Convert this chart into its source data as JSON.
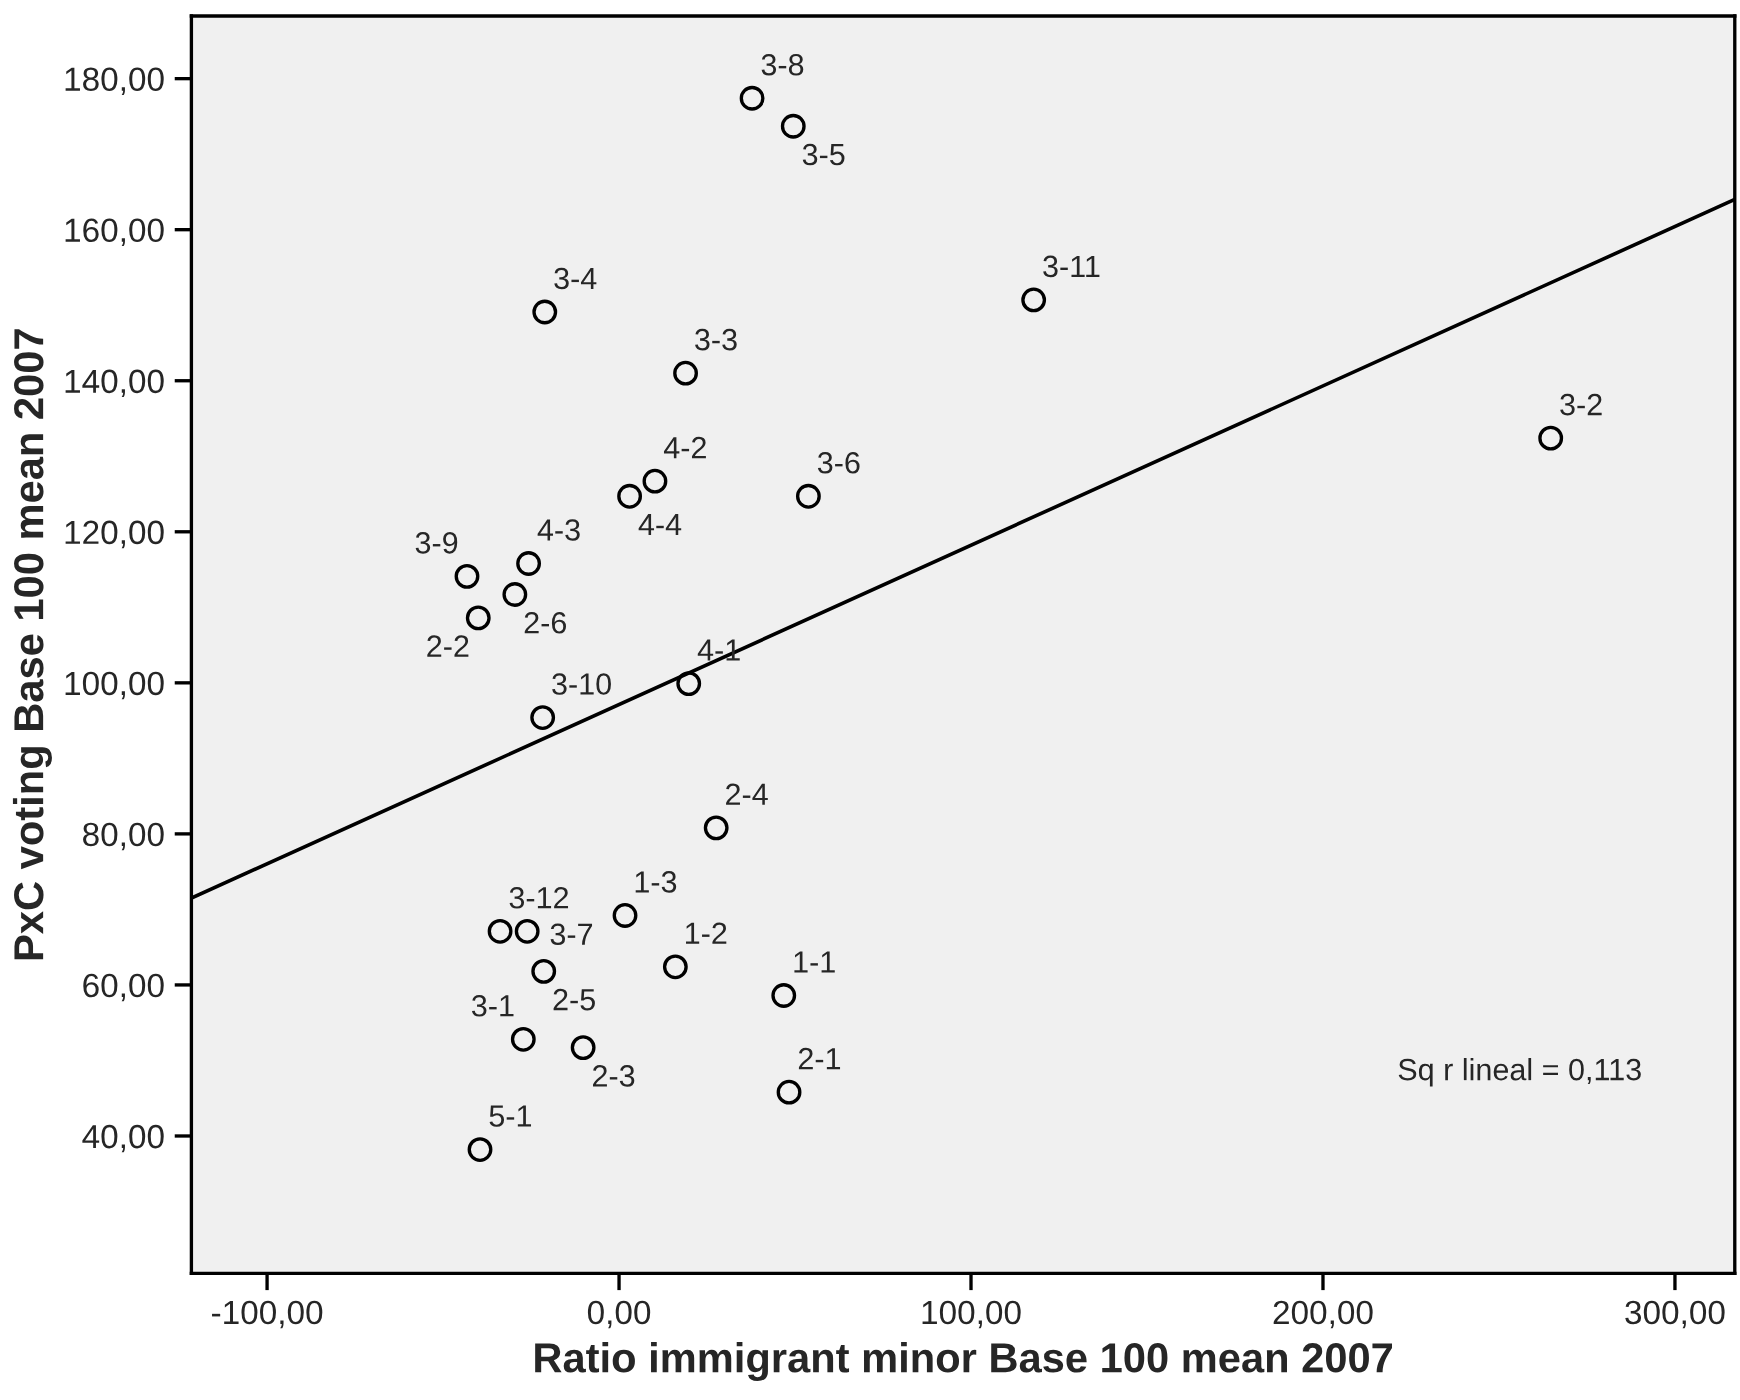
{
  "chart_data": {
    "type": "scatter",
    "xlabel": "Ratio immigrant minor Base 100 mean 2007",
    "ylabel": "PxC voting Base 100 mean 2007",
    "series": [
      {
        "color": "#000000",
        "marker": "circle",
        "x": [
          37.8,
          49.5,
          -21.1,
          18.9,
          3.0,
          10.2,
          53.8,
          -43.2,
          -25.7,
          -29.6,
          -40.0,
          19.8,
          -21.7,
          27.6,
          -33.8,
          -26.1,
          1.7,
          -21.4,
          16.0,
          46.8,
          -27.2,
          -10.2,
          48.3,
          -39.5,
          117.8,
          264.7
        ],
        "values": [
          177.4,
          173.7,
          149.1,
          141.0,
          124.7,
          126.7,
          124.7,
          114.1,
          115.8,
          111.7,
          108.6,
          99.9,
          95.4,
          80.8,
          67.1,
          67.1,
          69.2,
          61.8,
          62.4,
          58.6,
          52.8,
          51.7,
          45.8,
          38.2,
          150.7,
          132.4
        ]
      },
      {
        "type": "line",
        "color": "#000000",
        "line_style": "solid",
        "x": [
          -121.5,
          317
        ],
        "values": [
          71.5,
          164
        ]
      }
    ],
    "annotations": [
      {
        "text": "3-8",
        "x": 37.8,
        "y": 177.4
      },
      {
        "text": "3-5",
        "x": 49.5,
        "y": 173.7
      },
      {
        "text": "3-4",
        "x": -21.1,
        "y": 149.1
      },
      {
        "text": "3-3",
        "x": 18.9,
        "y": 141.0
      },
      {
        "text": "4-4",
        "x": 3.0,
        "y": 124.7
      },
      {
        "text": "4-2",
        "x": 10.2,
        "y": 126.7
      },
      {
        "text": "3-6",
        "x": 53.8,
        "y": 124.7
      },
      {
        "text": "3-9",
        "x": -43.2,
        "y": 114.1
      },
      {
        "text": "4-3",
        "x": -25.7,
        "y": 115.8
      },
      {
        "text": "2-6",
        "x": -29.6,
        "y": 111.7
      },
      {
        "text": "2-2",
        "x": -40.0,
        "y": 108.6
      },
      {
        "text": "4-1",
        "x": 19.8,
        "y": 99.9
      },
      {
        "text": "3-10",
        "x": -21.7,
        "y": 95.4
      },
      {
        "text": "2-4",
        "x": 27.6,
        "y": 80.8
      },
      {
        "text": "3-12",
        "x": -33.8,
        "y": 67.1
      },
      {
        "text": "3-7",
        "x": -26.1,
        "y": 67.1
      },
      {
        "text": "1-3",
        "x": 1.7,
        "y": 69.2
      },
      {
        "text": "2-5",
        "x": -21.4,
        "y": 61.8
      },
      {
        "text": "1-2",
        "x": 16.0,
        "y": 62.4
      },
      {
        "text": "1-1",
        "x": 46.8,
        "y": 58.6
      },
      {
        "text": "3-1",
        "x": -27.2,
        "y": 52.8
      },
      {
        "text": "2-3",
        "x": -10.2,
        "y": 51.7
      },
      {
        "text": "2-1",
        "x": 48.3,
        "y": 45.8
      },
      {
        "text": "5-1",
        "x": -39.5,
        "y": 38.2
      },
      {
        "text": "3-11",
        "x": 117.8,
        "y": 150.7
      },
      {
        "text": "3-2",
        "x": 264.7,
        "y": 132.4
      },
      "Sq r lineal = 0,113"
    ],
    "xlim": [
      -121.5,
      317
    ],
    "ylim": [
      21.8,
      188.3
    ],
    "xticks": [
      {
        "value": -100,
        "label": "-100,00"
      },
      {
        "value": 0,
        "label": "0,00"
      },
      {
        "value": 100,
        "label": "100,00"
      },
      {
        "value": 200,
        "label": "200,00"
      },
      {
        "value": 300,
        "label": "300,00"
      }
    ],
    "yticks": [
      {
        "value": 40,
        "label": "40,00"
      },
      {
        "value": 60,
        "label": "60,00"
      },
      {
        "value": 80,
        "label": "80,00"
      },
      {
        "value": 100,
        "label": "100,00"
      },
      {
        "value": 120,
        "label": "120,00"
      },
      {
        "value": 140,
        "label": "140,00"
      },
      {
        "value": 160,
        "label": "160,00"
      },
      {
        "value": 180,
        "label": "180,00"
      }
    ],
    "grid": false,
    "legend": false
  }
}
